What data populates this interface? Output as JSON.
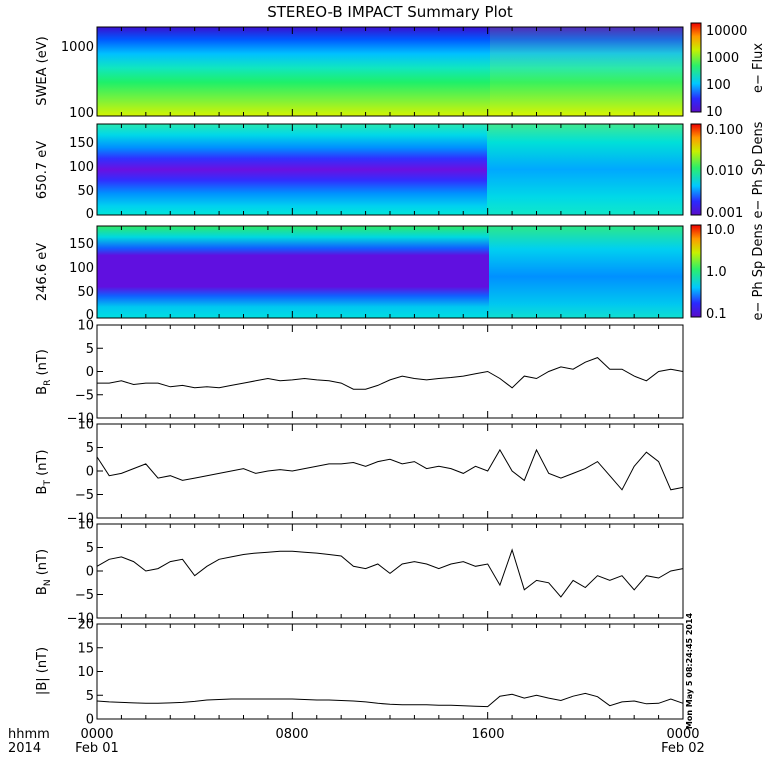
{
  "title": "STEREO-B IMPACT Summary Plot",
  "footer": {
    "left_line1": "hhmm",
    "left_line2": "2014",
    "ticks": [
      {
        "time": "0000",
        "date": "Feb 01",
        "hour": 0
      },
      {
        "time": "0800",
        "date": "",
        "hour": 8
      },
      {
        "time": "1600",
        "date": "",
        "hour": 16
      },
      {
        "time": "0000",
        "date": "Feb 02",
        "hour": 24
      }
    ]
  },
  "timestamp": "Mon May  5 08:24:45 2014",
  "colors": {
    "line": "#000000",
    "frame": "#000000"
  },
  "chart_data": [
    {
      "type": "heatmap",
      "panel": "swea",
      "ylabel": "SWEA (eV)",
      "yscale": "log",
      "ylim": [
        100,
        2000
      ],
      "yticks": [
        "1000",
        "100"
      ],
      "ytick_values": [
        1000,
        100
      ],
      "colorbar": {
        "label": "e− Flux",
        "scale": "log",
        "range": [
          10,
          10000
        ],
        "ticks": [
          "10000",
          "1000",
          "100",
          "10"
        ],
        "tick_values": [
          10000,
          1000,
          100,
          10
        ]
      }
    },
    {
      "type": "heatmap",
      "panel": "pad650",
      "ylabel": "650.7 eV",
      "ylim": [
        0,
        180
      ],
      "yticks": [
        "150",
        "100",
        "50",
        "0"
      ],
      "ytick_values": [
        150,
        100,
        50,
        0
      ],
      "colorbar": {
        "label": "e− Ph Sp Dens",
        "scale": "log",
        "range": [
          0.001,
          0.1
        ],
        "ticks": [
          "0.100",
          "0.010",
          "0.001"
        ],
        "tick_values": [
          0.1,
          0.01,
          0.001
        ]
      }
    },
    {
      "type": "heatmap",
      "panel": "pad246",
      "ylabel": "246.6 eV",
      "ylim": [
        0,
        180
      ],
      "yticks": [
        "150",
        "100",
        "50",
        "0"
      ],
      "ytick_values": [
        150,
        100,
        50,
        0
      ],
      "colorbar": {
        "label": "e− Ph Sp Dens",
        "scale": "log",
        "range": [
          0.1,
          10
        ],
        "ticks": [
          "10.0",
          "1.0",
          "0.1"
        ],
        "tick_values": [
          10,
          1,
          0.1
        ]
      }
    },
    {
      "type": "line",
      "panel": "br",
      "ylabel_main": "B",
      "ylabel_sub": "R",
      "ylabel_unit": " (nT)",
      "ylim": [
        -10,
        10
      ],
      "yticks": [
        "10",
        "5",
        "0",
        "−5",
        "−10"
      ],
      "ytick_values": [
        10,
        5,
        0,
        -5,
        -10
      ],
      "x": [
        0,
        0.5,
        1,
        1.5,
        2,
        2.5,
        3,
        3.5,
        4,
        4.5,
        5,
        5.5,
        6,
        6.5,
        7,
        7.5,
        8,
        8.5,
        9,
        9.5,
        10,
        10.5,
        11,
        11.5,
        12,
        12.5,
        13,
        13.5,
        14,
        14.5,
        15,
        15.5,
        16,
        16.5,
        17,
        17.5,
        18,
        18.5,
        19,
        19.5,
        20,
        20.5,
        21,
        21.5,
        22,
        22.5,
        23,
        23.5,
        24
      ],
      "y": [
        -2.5,
        -2.5,
        -2,
        -2.8,
        -2.5,
        -2.5,
        -3.3,
        -3,
        -3.5,
        -3.3,
        -3.5,
        -3,
        -2.5,
        -2,
        -1.5,
        -2,
        -1.8,
        -1.5,
        -1.8,
        -2,
        -2.5,
        -3.8,
        -3.8,
        -3,
        -1.8,
        -1,
        -1.5,
        -1.8,
        -1.5,
        -1.3,
        -1,
        -0.5,
        0,
        -1.5,
        -3.5,
        -1,
        -1.5,
        0,
        1,
        0.5,
        2,
        3,
        0.5,
        0.5,
        -1,
        -2,
        0,
        0.5,
        0
      ]
    },
    {
      "type": "line",
      "panel": "bt",
      "ylabel_main": "B",
      "ylabel_sub": "T",
      "ylabel_unit": " (nT)",
      "ylim": [
        -10,
        10
      ],
      "yticks": [
        "10",
        "5",
        "0",
        "−5",
        "−10"
      ],
      "ytick_values": [
        10,
        5,
        0,
        -5,
        -10
      ],
      "x": [
        0,
        0.5,
        1,
        1.5,
        2,
        2.5,
        3,
        3.5,
        4,
        4.5,
        5,
        5.5,
        6,
        6.5,
        7,
        7.5,
        8,
        8.5,
        9,
        9.5,
        10,
        10.5,
        11,
        11.5,
        12,
        12.5,
        13,
        13.5,
        14,
        14.5,
        15,
        15.5,
        16,
        16.5,
        17,
        17.5,
        18,
        18.5,
        19,
        19.5,
        20,
        20.5,
        21,
        21.5,
        22,
        22.5,
        23,
        23.5,
        24
      ],
      "y": [
        3,
        -1,
        -0.5,
        0.5,
        1.5,
        -1.5,
        -1,
        -2,
        -1.5,
        -1,
        -0.5,
        0,
        0.5,
        -0.5,
        0,
        0.3,
        0,
        0.5,
        1,
        1.5,
        1.5,
        1.8,
        1,
        2,
        2.5,
        1.5,
        2,
        0.5,
        1,
        0.5,
        -0.5,
        1,
        0,
        4.5,
        0,
        -2,
        4.5,
        -0.5,
        -1.5,
        -0.5,
        0.5,
        2,
        -1,
        -4,
        1,
        4,
        2,
        -4,
        -3.5
      ]
    },
    {
      "type": "line",
      "panel": "bn",
      "ylabel_main": "B",
      "ylabel_sub": "N",
      "ylabel_unit": " (nT)",
      "ylim": [
        -10,
        10
      ],
      "yticks": [
        "10",
        "5",
        "0",
        "−5",
        "−10"
      ],
      "ytick_values": [
        10,
        5,
        0,
        -5,
        -10
      ],
      "x": [
        0,
        0.5,
        1,
        1.5,
        2,
        2.5,
        3,
        3.5,
        4,
        4.5,
        5,
        5.5,
        6,
        6.5,
        7,
        7.5,
        8,
        8.5,
        9,
        9.5,
        10,
        10.5,
        11,
        11.5,
        12,
        12.5,
        13,
        13.5,
        14,
        14.5,
        15,
        15.5,
        16,
        16.5,
        17,
        17.5,
        18,
        18.5,
        19,
        19.5,
        20,
        20.5,
        21,
        21.5,
        22,
        22.5,
        23,
        23.5,
        24
      ],
      "y": [
        1,
        2.5,
        3,
        2,
        0,
        0.5,
        2,
        2.5,
        -1,
        1,
        2.5,
        3,
        3.5,
        3.8,
        4,
        4.2,
        4.2,
        4,
        3.8,
        3.5,
        3.2,
        1,
        0.5,
        1.5,
        -0.5,
        1.5,
        2,
        1.5,
        0.5,
        1.5,
        2,
        1,
        1.5,
        -3,
        4.5,
        -4,
        -2,
        -2.5,
        -5.5,
        -2,
        -3.5,
        -1,
        -2,
        -1,
        -4,
        -1,
        -1.5,
        0,
        0.5
      ]
    },
    {
      "type": "line",
      "panel": "bmag",
      "ylabel_main": "|B| (nT)",
      "ylim": [
        0,
        20
      ],
      "yticks": [
        "20",
        "15",
        "10",
        "5",
        "0"
      ],
      "ytick_values": [
        20,
        15,
        10,
        5,
        0
      ],
      "x": [
        0,
        0.5,
        1,
        1.5,
        2,
        2.5,
        3,
        3.5,
        4,
        4.5,
        5,
        5.5,
        6,
        6.5,
        7,
        7.5,
        8,
        8.5,
        9,
        9.5,
        10,
        10.5,
        11,
        11.5,
        12,
        12.5,
        13,
        13.5,
        14,
        14.5,
        15,
        15.5,
        16,
        16.5,
        17,
        17.5,
        18,
        18.5,
        19,
        19.5,
        20,
        20.5,
        21,
        21.5,
        22,
        22.5,
        23,
        23.5,
        24
      ],
      "y": [
        3.8,
        3.6,
        3.5,
        3.4,
        3.3,
        3.3,
        3.4,
        3.5,
        3.7,
        4,
        4.1,
        4.2,
        4.2,
        4.2,
        4.2,
        4.2,
        4.2,
        4.1,
        4,
        4,
        3.9,
        3.8,
        3.6,
        3.3,
        3.1,
        3,
        3,
        3,
        2.9,
        2.9,
        2.8,
        2.7,
        2.6,
        4.8,
        5.2,
        4.4,
        5,
        4.4,
        3.9,
        4.8,
        5.4,
        4.7,
        2.8,
        3.6,
        3.8,
        3.2,
        3.3,
        4.2,
        3.3
      ]
    }
  ]
}
